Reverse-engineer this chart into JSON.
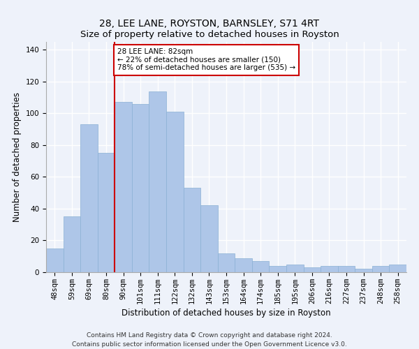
{
  "title": "28, LEE LANE, ROYSTON, BARNSLEY, S71 4RT",
  "subtitle": "Size of property relative to detached houses in Royston",
  "xlabel": "Distribution of detached houses by size in Royston",
  "ylabel": "Number of detached properties",
  "categories": [
    "48sqm",
    "59sqm",
    "69sqm",
    "80sqm",
    "90sqm",
    "101sqm",
    "111sqm",
    "122sqm",
    "132sqm",
    "143sqm",
    "153sqm",
    "164sqm",
    "174sqm",
    "185sqm",
    "195sqm",
    "206sqm",
    "216sqm",
    "227sqm",
    "237sqm",
    "248sqm",
    "258sqm"
  ],
  "values": [
    15,
    35,
    93,
    75,
    107,
    106,
    114,
    101,
    53,
    42,
    12,
    9,
    7,
    4,
    5,
    3,
    4,
    4,
    2,
    4,
    5
  ],
  "bar_color": "#aec6e8",
  "bar_edge_color": "#8ab0d4",
  "vline_color": "#cc0000",
  "vline_x_index": 3.5,
  "annotation_text": "28 LEE LANE: 82sqm\n← 22% of detached houses are smaller (150)\n78% of semi-detached houses are larger (535) →",
  "annotation_box_color": "#ffffff",
  "annotation_box_edge": "#cc0000",
  "ylim": [
    0,
    145
  ],
  "yticks": [
    0,
    20,
    40,
    60,
    80,
    100,
    120,
    140
  ],
  "footer": "Contains HM Land Registry data © Crown copyright and database right 2024.\nContains public sector information licensed under the Open Government Licence v3.0.",
  "background_color": "#eef2fa",
  "grid_color": "#ffffff",
  "title_fontsize": 10,
  "axis_label_fontsize": 8.5,
  "tick_fontsize": 7.5,
  "footer_fontsize": 6.5,
  "annotation_fontsize": 7.5
}
